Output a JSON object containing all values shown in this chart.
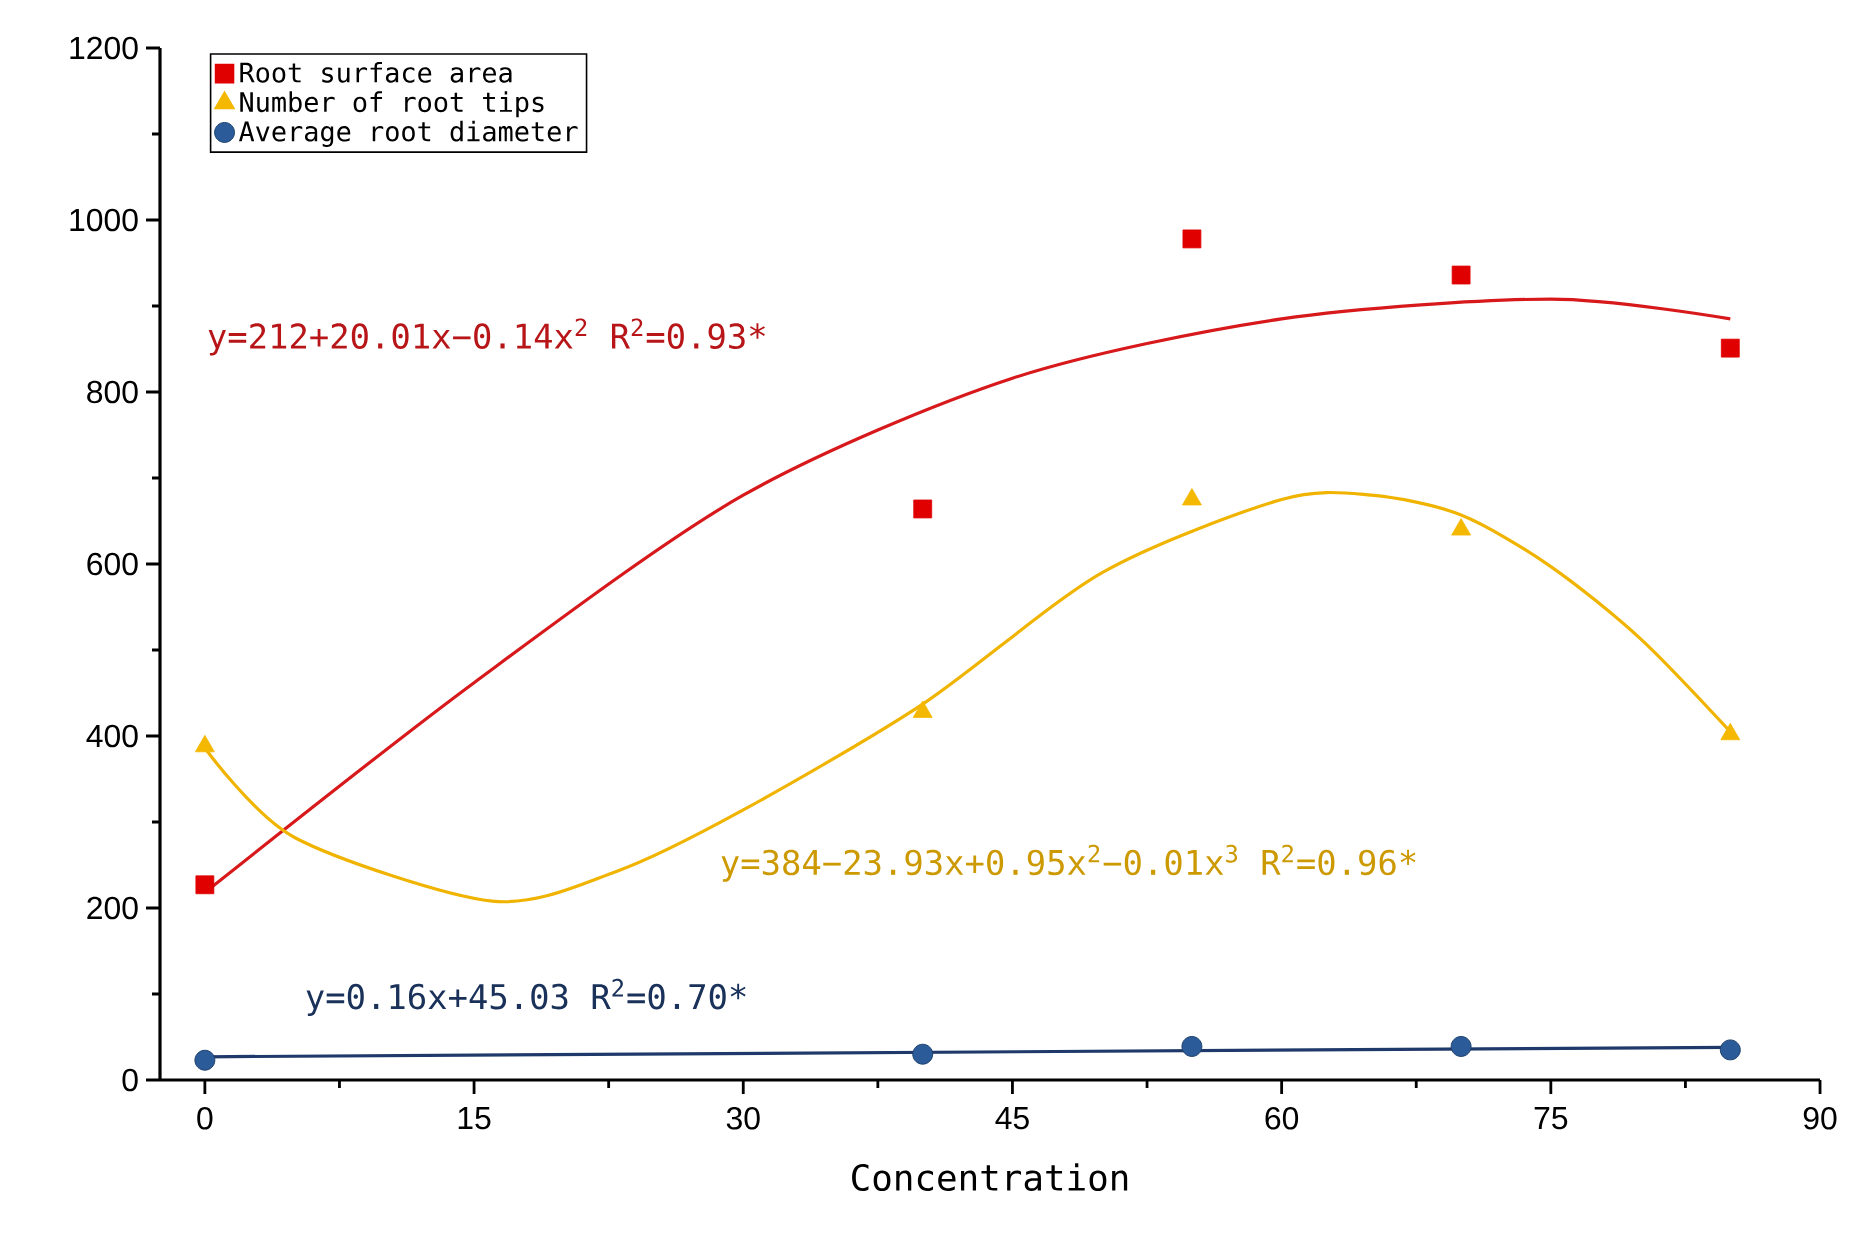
{
  "chart_data": {
    "type": "scatter",
    "xlabel": "Concentration",
    "xlim": [
      -2.5,
      90
    ],
    "xticks": [
      0,
      15,
      30,
      45,
      60,
      75,
      90
    ],
    "ylim": [
      0,
      1200
    ],
    "yticks": [
      0,
      200,
      400,
      600,
      800,
      1000,
      1200
    ],
    "grid": false,
    "legend": "top left",
    "series": [
      {
        "name": "Root surface area",
        "color": "#e00000",
        "marker": "square",
        "x": [
          0,
          40,
          55,
          70,
          85
        ],
        "values": [
          227,
          664,
          978,
          936,
          851
        ]
      },
      {
        "name": "Number of root tips",
        "color": "#f5b800",
        "marker": "triangle",
        "x": [
          0,
          40,
          55,
          70,
          85
        ],
        "values": [
          388,
          428,
          675,
          640,
          402
        ]
      },
      {
        "name": "Average root diameter",
        "color": "#2b5c99",
        "marker": "circle",
        "x": [
          0,
          40,
          55,
          70,
          85
        ],
        "values": [
          23,
          30,
          39,
          39,
          35
        ]
      },
      {
        "type": "line",
        "color": "#d7191c",
        "x": [
          0,
          15,
          30,
          45,
          60,
          75,
          85
        ],
        "values": [
          218,
          462,
          680,
          816,
          885,
          908,
          885
        ]
      },
      {
        "type": "line",
        "color": "#f0b400",
        "x": [
          0,
          5,
          16,
          23,
          30,
          40,
          50,
          60,
          65,
          70,
          75,
          80,
          85
        ],
        "values": [
          386,
          282,
          208,
          243,
          314,
          437,
          590,
          675,
          680,
          657,
          597,
          513,
          405
        ]
      },
      {
        "type": "line",
        "color": "#1f3a6a",
        "x": [
          0,
          85
        ],
        "values": [
          27,
          38
        ]
      }
    ],
    "annotations": [
      "y=212+20.01x−0.14x$^{2}$ R$^{2}$=0.93*",
      "y=384−23.93x+0.95x$^{2}$−0.01x$^{3}$ R$^{2}$=0.96*",
      "y=0.16x+45.03 R$^{2}$=0.70*"
    ]
  }
}
